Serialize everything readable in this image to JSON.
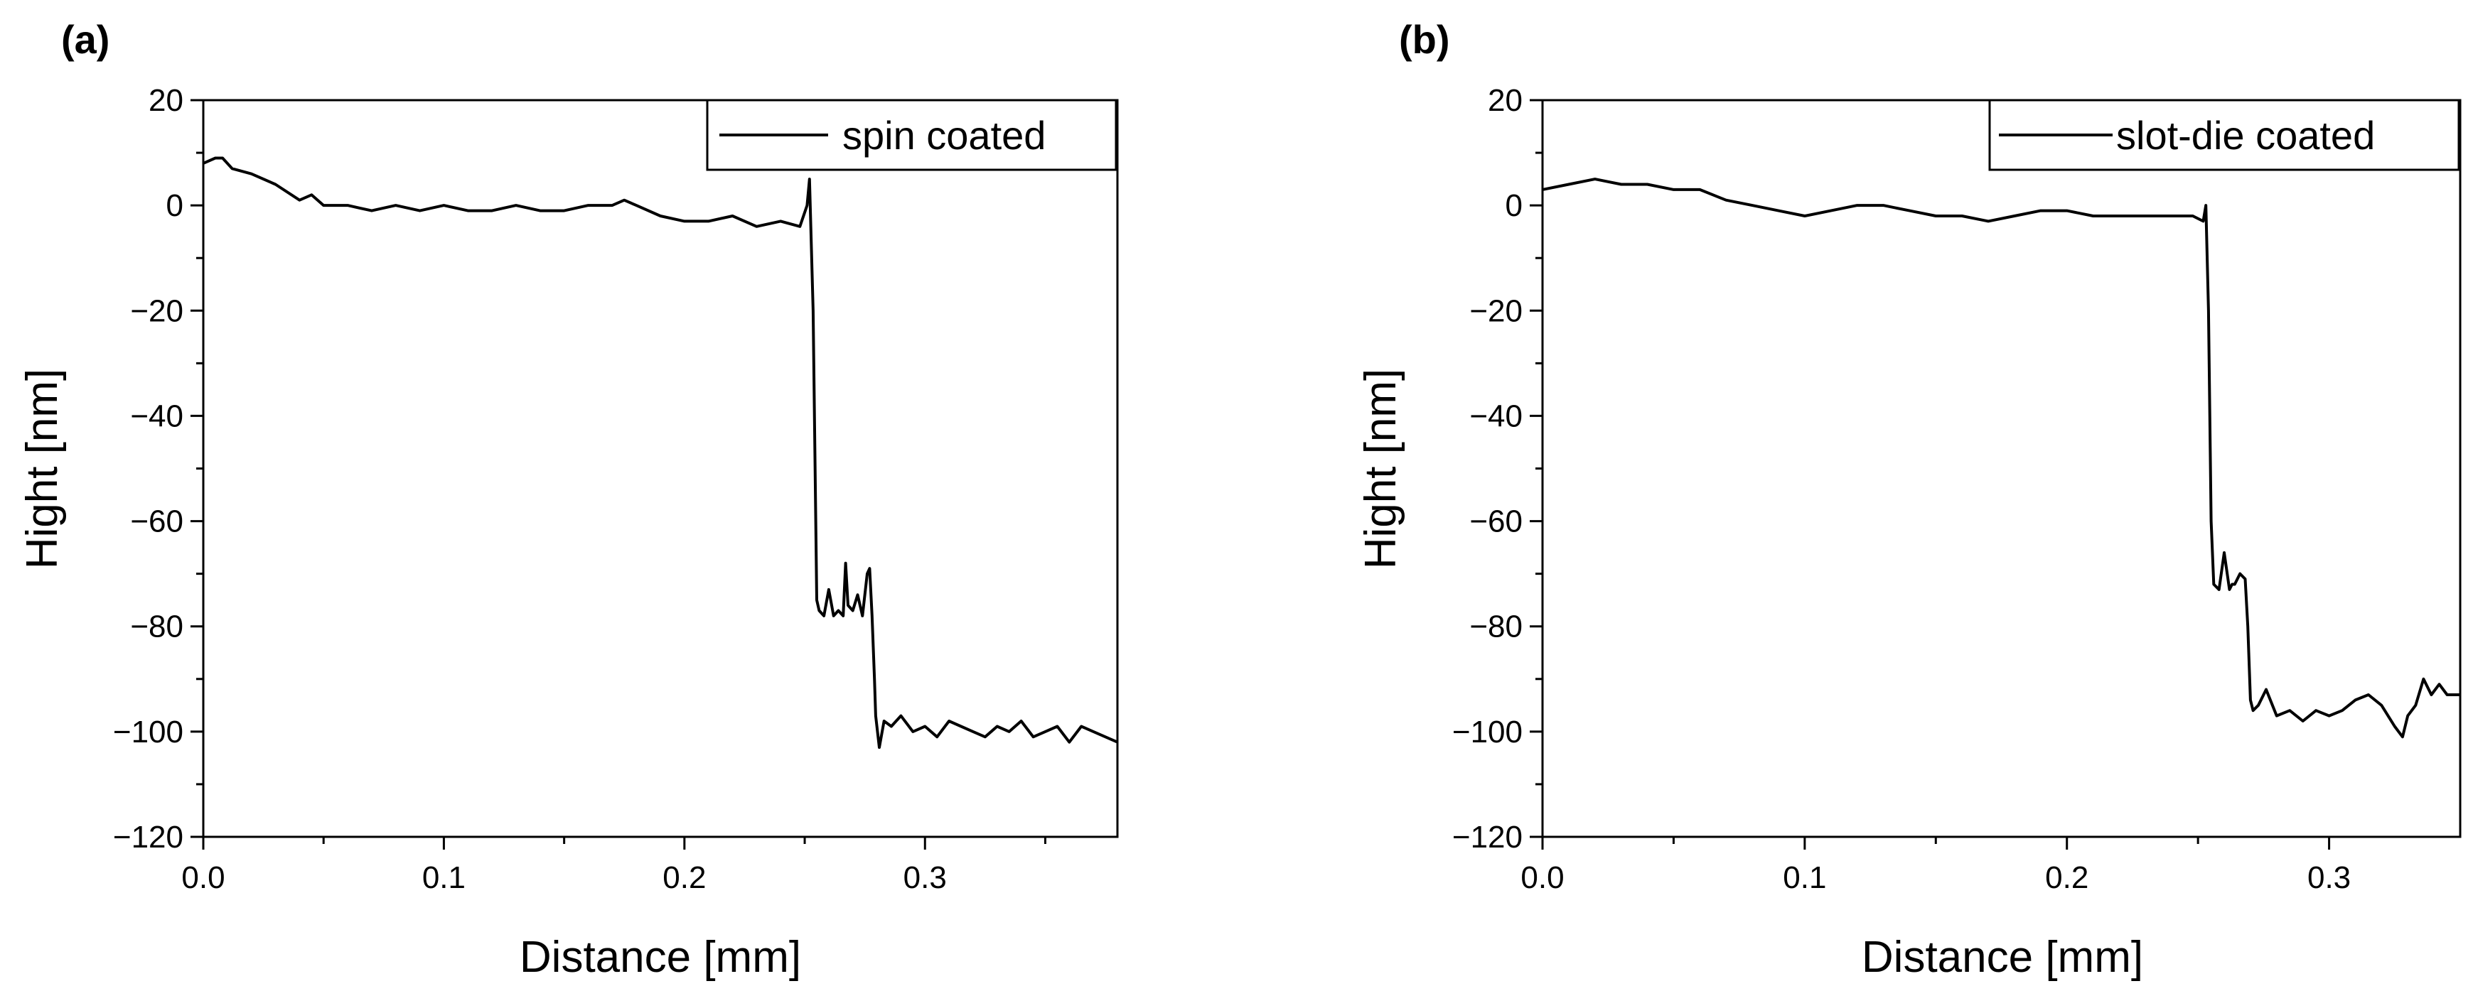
{
  "chart_data": [
    {
      "type": "line",
      "panel_label": "(a)",
      "xlabel": "Distance [mm]",
      "ylabel": "Hight [nm]",
      "xlim": [
        0.0,
        0.38
      ],
      "ylim": [
        -120,
        20
      ],
      "x_ticks": [
        0.0,
        0.1,
        0.2,
        0.3
      ],
      "x_tick_labels": [
        "0.0",
        "0.1",
        "0.2",
        "0.3"
      ],
      "y_ticks": [
        20,
        0,
        -20,
        -40,
        -60,
        -80,
        -100,
        -120
      ],
      "y_tick_labels": [
        "20",
        "0",
        "−20",
        "−40",
        "−60",
        "−80",
        "−100",
        "−120"
      ],
      "legend": "top-right",
      "series": [
        {
          "name": "spin coated",
          "x": [
            0.0,
            0.005,
            0.008,
            0.012,
            0.02,
            0.03,
            0.04,
            0.045,
            0.05,
            0.06,
            0.07,
            0.08,
            0.09,
            0.1,
            0.11,
            0.12,
            0.13,
            0.14,
            0.15,
            0.16,
            0.17,
            0.175,
            0.18,
            0.19,
            0.2,
            0.21,
            0.22,
            0.23,
            0.24,
            0.248,
            0.251,
            0.252,
            0.2535,
            0.255,
            0.256,
            0.258,
            0.26,
            0.262,
            0.264,
            0.266,
            0.267,
            0.268,
            0.27,
            0.272,
            0.274,
            0.276,
            0.277,
            0.278,
            0.279,
            0.2795,
            0.281,
            0.283,
            0.286,
            0.29,
            0.295,
            0.3,
            0.305,
            0.31,
            0.315,
            0.32,
            0.325,
            0.33,
            0.335,
            0.34,
            0.345,
            0.35,
            0.355,
            0.36,
            0.365,
            0.37,
            0.375,
            0.38
          ],
          "y": [
            8,
            9,
            9,
            7,
            6,
            4,
            1,
            2,
            0,
            0,
            -1,
            0,
            -1,
            0,
            -1,
            -1,
            0,
            -1,
            -1,
            0,
            0,
            1,
            0,
            -2,
            -3,
            -3,
            -2,
            -4,
            -3,
            -4,
            0,
            5,
            -20,
            -75,
            -77,
            -78,
            -73,
            -78,
            -77,
            -78,
            -68,
            -76,
            -77,
            -74,
            -78,
            -70,
            -69,
            -78,
            -90,
            -97,
            -103,
            -98,
            -99,
            -97,
            -100,
            -99,
            -101,
            -98,
            -99,
            -100,
            -101,
            -99,
            -100,
            -98,
            -101,
            -100,
            -99,
            -102,
            -99,
            -100,
            -101,
            -102
          ]
        }
      ]
    },
    {
      "type": "line",
      "panel_label": "(b)",
      "xlabel": "Distance [mm]",
      "ylabel": "Hight [nm]",
      "xlim": [
        0.0,
        0.35
      ],
      "ylim": [
        -120,
        20
      ],
      "x_ticks": [
        0.0,
        0.1,
        0.2,
        0.3
      ],
      "x_tick_labels": [
        "0.0",
        "0.1",
        "0.2",
        "0.3"
      ],
      "y_ticks": [
        20,
        0,
        -20,
        -40,
        -60,
        -80,
        -100,
        -120
      ],
      "y_tick_labels": [
        "20",
        "0",
        "−20",
        "−40",
        "−60",
        "−80",
        "−100",
        "−120"
      ],
      "legend": "top-right",
      "series": [
        {
          "name": "slot-die coated",
          "x": [
            0.0,
            0.01,
            0.02,
            0.03,
            0.04,
            0.05,
            0.06,
            0.07,
            0.08,
            0.09,
            0.1,
            0.11,
            0.12,
            0.13,
            0.14,
            0.15,
            0.16,
            0.17,
            0.18,
            0.19,
            0.2,
            0.21,
            0.22,
            0.23,
            0.24,
            0.248,
            0.252,
            0.253,
            0.254,
            0.255,
            0.256,
            0.258,
            0.26,
            0.262,
            0.263,
            0.264,
            0.266,
            0.268,
            0.269,
            0.27,
            0.271,
            0.273,
            0.276,
            0.28,
            0.285,
            0.29,
            0.295,
            0.3,
            0.305,
            0.31,
            0.315,
            0.32,
            0.325,
            0.328,
            0.33,
            0.333,
            0.336,
            0.339,
            0.342,
            0.345,
            0.35
          ],
          "y": [
            3,
            4,
            5,
            4,
            4,
            3,
            3,
            1,
            0,
            -1,
            -2,
            -1,
            0,
            0,
            -1,
            -2,
            -2,
            -3,
            -2,
            -1,
            -1,
            -2,
            -2,
            -2,
            -2,
            -2,
            -3,
            0,
            -20,
            -60,
            -72,
            -73,
            -66,
            -73,
            -72,
            -72,
            -70,
            -71,
            -80,
            -94,
            -96,
            -95,
            -92,
            -97,
            -96,
            -98,
            -96,
            -97,
            -96,
            -94,
            -93,
            -95,
            -99,
            -101,
            -97,
            -95,
            -90,
            -93,
            -91,
            -93,
            -93
          ]
        }
      ]
    }
  ]
}
